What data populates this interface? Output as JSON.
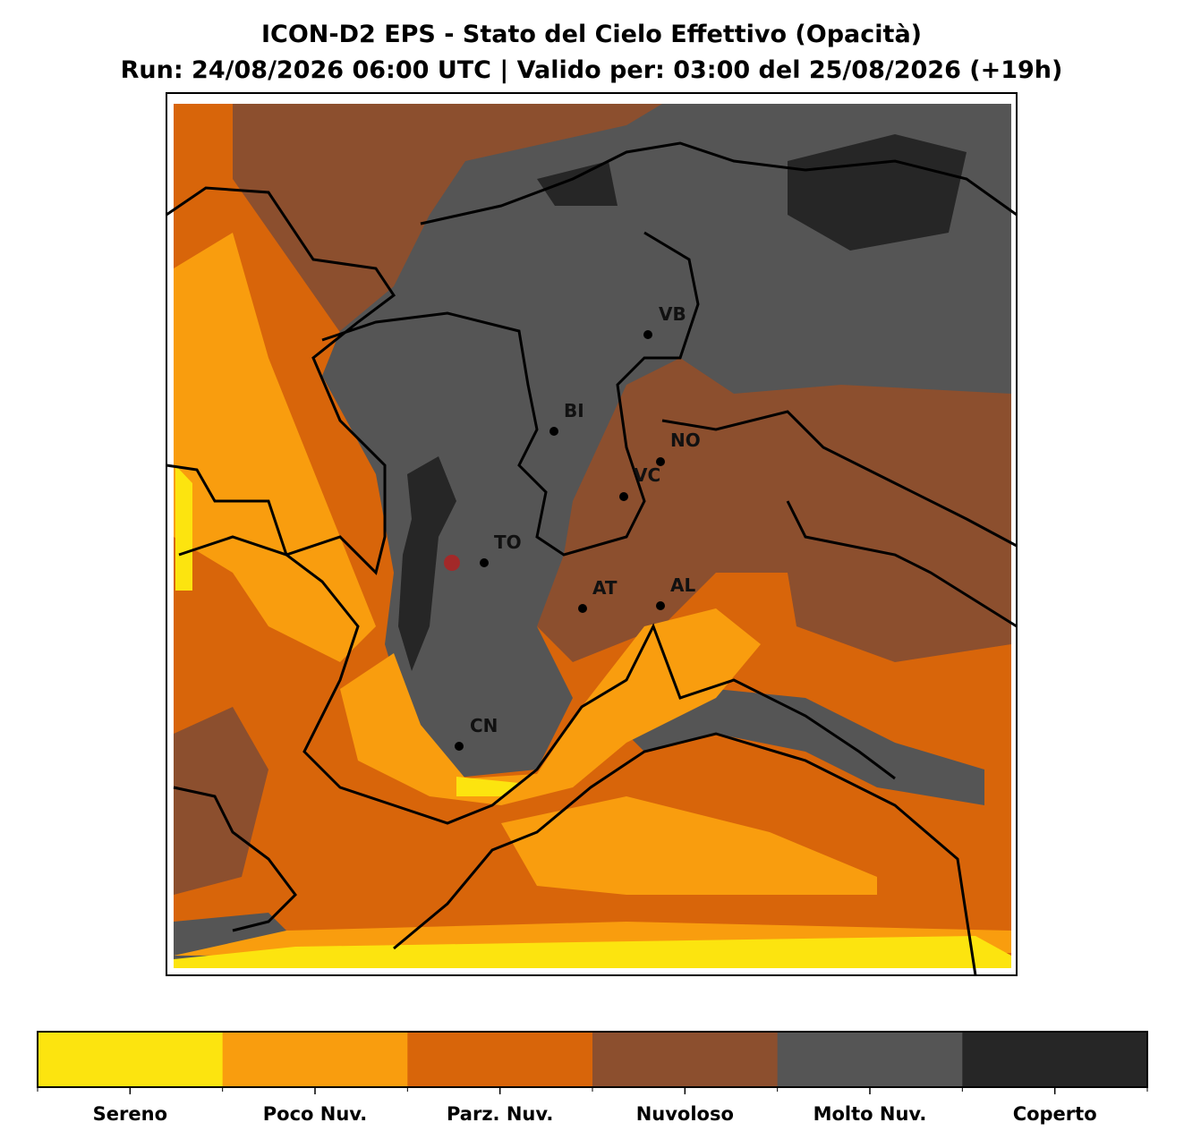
{
  "title": "ICON-D2 EPS - Stato del Cielo Effettivo (Opacità)",
  "subtitle": "Run: 24/08/2026 06:00 UTC | Valido per: 03:00 del 25/08/2026 (+19h)",
  "cities": [
    {
      "label": "VB"
    },
    {
      "label": "BI"
    },
    {
      "label": "NO"
    },
    {
      "label": "VC"
    },
    {
      "label": "TO"
    },
    {
      "label": "AT"
    },
    {
      "label": "AL"
    },
    {
      "label": "CN"
    }
  ],
  "legend": {
    "items": [
      {
        "label": "Sereno",
        "color": "#fce40f"
      },
      {
        "label": "Poco Nuv.",
        "color": "#f99d0e"
      },
      {
        "label": "Parz. Nuv.",
        "color": "#d8650a"
      },
      {
        "label": "Nuvoloso",
        "color": "#8c4f2e"
      },
      {
        "label": "Molto Nuv.",
        "color": "#555555"
      },
      {
        "label": "Coperto",
        "color": "#262626"
      }
    ]
  }
}
